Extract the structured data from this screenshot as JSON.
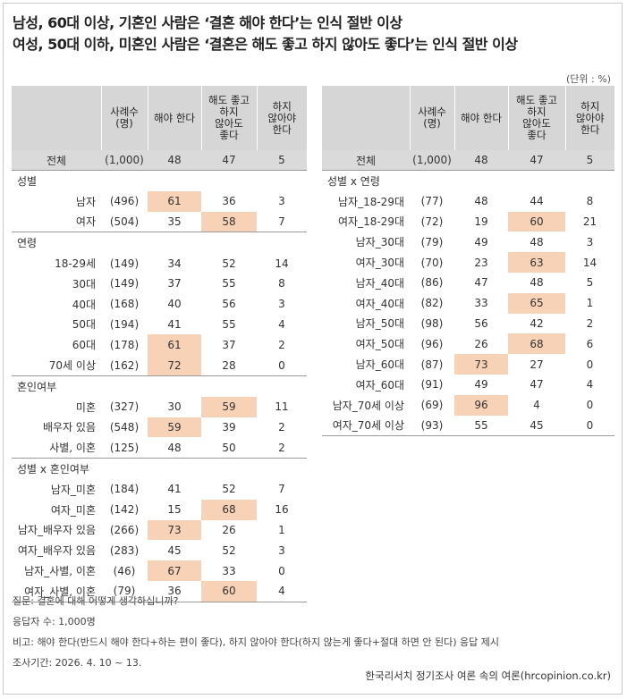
{
  "title": {
    "line1": "남성, 60대 이상, 기혼인 사람은 ‘결혼 해야 한다’는 인식 절반 이상",
    "line2": "여성, 50대 이하, 미혼인 사람은 ‘결혼은 해도 좋고 하지 않아도 좋다’는 인식 절반 이상"
  },
  "unit": "(단위 : %)",
  "headers": {
    "n": [
      "사례수",
      "(명)"
    ],
    "must": [
      "해야 한다"
    ],
    "either": [
      "해도 좋고",
      "하지",
      "않아도",
      "좋다"
    ],
    "not": [
      "하지",
      "않아야",
      "한다"
    ]
  },
  "left": {
    "total": {
      "label": "전체",
      "n": "(1,000)",
      "v": [
        "48",
        "47",
        "5"
      ]
    },
    "sections": [
      {
        "title": "성별",
        "rows": [
          {
            "label": "남자",
            "n": "(496)",
            "v": [
              "61",
              "36",
              "3"
            ],
            "hl": 0
          },
          {
            "label": "여자",
            "n": "(504)",
            "v": [
              "35",
              "58",
              "7"
            ],
            "hl": 1
          }
        ]
      },
      {
        "title": "연령",
        "rows": [
          {
            "label": "18-29세",
            "n": "(149)",
            "v": [
              "34",
              "52",
              "14"
            ],
            "hl": -1
          },
          {
            "label": "30대",
            "n": "(149)",
            "v": [
              "37",
              "55",
              "8"
            ],
            "hl": -1
          },
          {
            "label": "40대",
            "n": "(168)",
            "v": [
              "40",
              "56",
              "3"
            ],
            "hl": -1
          },
          {
            "label": "50대",
            "n": "(194)",
            "v": [
              "41",
              "55",
              "4"
            ],
            "hl": -1
          },
          {
            "label": "60대",
            "n": "(178)",
            "v": [
              "61",
              "37",
              "2"
            ],
            "hl": 0
          },
          {
            "label": "70세 이상",
            "n": "(162)",
            "v": [
              "72",
              "28",
              "0"
            ],
            "hl": 0
          }
        ]
      },
      {
        "title": "혼인여부",
        "rows": [
          {
            "label": "미혼",
            "n": "(327)",
            "v": [
              "30",
              "59",
              "11"
            ],
            "hl": 1
          },
          {
            "label": "배우자 있음",
            "n": "(548)",
            "v": [
              "59",
              "39",
              "2"
            ],
            "hl": 0
          },
          {
            "label": "사별, 이혼",
            "n": "(125)",
            "v": [
              "48",
              "50",
              "2"
            ],
            "hl": -1
          }
        ]
      },
      {
        "title": "성별 x 혼인여부",
        "rows": [
          {
            "label": "남자_미혼",
            "n": "(184)",
            "v": [
              "41",
              "52",
              "7"
            ],
            "hl": -1
          },
          {
            "label": "여자_미혼",
            "n": "(142)",
            "v": [
              "15",
              "68",
              "16"
            ],
            "hl": 1
          },
          {
            "label": "남자_배우자 있음",
            "n": "(266)",
            "v": [
              "73",
              "26",
              "1"
            ],
            "hl": 0
          },
          {
            "label": "여자_배우자 있음",
            "n": "(283)",
            "v": [
              "45",
              "52",
              "3"
            ],
            "hl": -1
          },
          {
            "label": "남자_사별, 이혼",
            "n": "(46)",
            "v": [
              "67",
              "33",
              "0"
            ],
            "hl": 0
          },
          {
            "label": "여자_사별, 이혼",
            "n": "(79)",
            "v": [
              "36",
              "60",
              "4"
            ],
            "hl": 1
          }
        ]
      }
    ]
  },
  "right": {
    "total": {
      "label": "전체",
      "n": "(1,000)",
      "v": [
        "48",
        "47",
        "5"
      ]
    },
    "sections": [
      {
        "title": "성별 x 연령",
        "rows": [
          {
            "label": "남자_18-29대",
            "n": "(77)",
            "v": [
              "48",
              "44",
              "8"
            ],
            "hl": -1
          },
          {
            "label": "여자_18-29대",
            "n": "(72)",
            "v": [
              "19",
              "60",
              "21"
            ],
            "hl": 1
          },
          {
            "label": "남자_30대",
            "n": "(79)",
            "v": [
              "49",
              "48",
              "3"
            ],
            "hl": -1
          },
          {
            "label": "여자_30대",
            "n": "(70)",
            "v": [
              "23",
              "63",
              "14"
            ],
            "hl": 1
          },
          {
            "label": "남자_40대",
            "n": "(86)",
            "v": [
              "47",
              "48",
              "5"
            ],
            "hl": -1
          },
          {
            "label": "여자_40대",
            "n": "(82)",
            "v": [
              "33",
              "65",
              "1"
            ],
            "hl": 1
          },
          {
            "label": "남자_50대",
            "n": "(98)",
            "v": [
              "56",
              "42",
              "2"
            ],
            "hl": -1
          },
          {
            "label": "여자_50대",
            "n": "(96)",
            "v": [
              "26",
              "68",
              "6"
            ],
            "hl": 1
          },
          {
            "label": "남자_60대",
            "n": "(87)",
            "v": [
              "73",
              "27",
              "0"
            ],
            "hl": 0
          },
          {
            "label": "여자_60대",
            "n": "(91)",
            "v": [
              "49",
              "47",
              "4"
            ],
            "hl": -1
          },
          {
            "label": "남자_70세 이상",
            "n": "(69)",
            "v": [
              "96",
              "4",
              "0"
            ],
            "hl": 0
          },
          {
            "label": "여자_70세 이상",
            "n": "(93)",
            "v": [
              "55",
              "45",
              "0"
            ],
            "hl": -1
          }
        ]
      }
    ]
  },
  "footer": {
    "question": "질문: 결혼에 대해 어떻게 생각하십니까?",
    "respondents": "응답자 수: 1,000명",
    "note": "비고: 해야 한다(반드시 해야 한다+하는 편이 좋다), 하지 않아야 한다(하지 않는게 좋다+절대 하면 안 된다) 응답 제시",
    "period": "조사기간: 2026. 4. 10 ~ 13.",
    "source": "한국리서치 정기조사 여론 속의 여론(hrcopinion.co.kr)"
  },
  "colors": {
    "highlight": "#f8d2b6",
    "header_bg": "#d6d6d6"
  }
}
